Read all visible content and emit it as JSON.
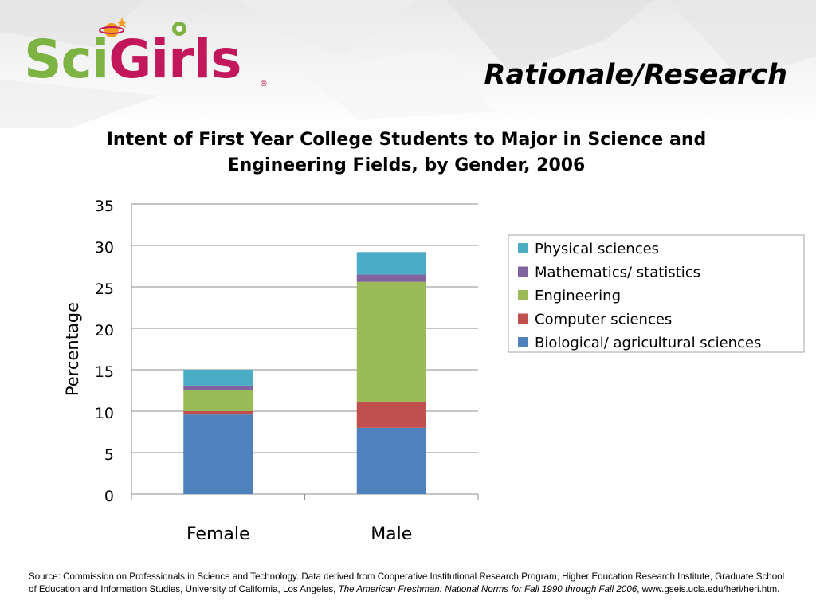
{
  "header": {
    "logo_sci": "Sci",
    "logo_girls": "Girls",
    "logo_reg": "®",
    "slide_title": "Rationale/Research"
  },
  "chart_data": {
    "type": "bar",
    "stacked": true,
    "title": "Intent of First Year College Students to Major in Science and Engineering Fields, by Gender, 2006",
    "xlabel": "",
    "ylabel": "Percentage",
    "categories": [
      "Female",
      "Male"
    ],
    "ylim": [
      0,
      35
    ],
    "yticks": [
      "0",
      "5",
      "10",
      "15",
      "20",
      "25",
      "30",
      "35"
    ],
    "grid": true,
    "legend": "right",
    "series": [
      {
        "name": "Biological/ agricultural sciences",
        "color": "#4f81bd",
        "values": [
          9.6,
          8.0
        ]
      },
      {
        "name": "Computer sciences",
        "color": "#c0504d",
        "values": [
          0.4,
          3.1
        ]
      },
      {
        "name": "Engineering",
        "color": "#9bbb59",
        "values": [
          2.5,
          14.5
        ]
      },
      {
        "name": "Mathematics/ statistics",
        "color": "#8064a2",
        "values": [
          0.6,
          0.9
        ]
      },
      {
        "name": "Physical sciences",
        "color": "#4bacc6",
        "values": [
          1.9,
          2.7
        ]
      }
    ]
  },
  "footer": {
    "source_text": "Source: Commission on Professionals in Science and Technology. Data derived from Cooperative Institutional Research Program, Higher Education Research Institute, Graduate School of Education and Information Studies, University of California, Los Angeles, ",
    "source_italic": "The American Freshman: National Norms for Fall 1990 through Fall 2006",
    "source_end": ", www.gseis.ucla.edu/heri/heri.htm."
  }
}
